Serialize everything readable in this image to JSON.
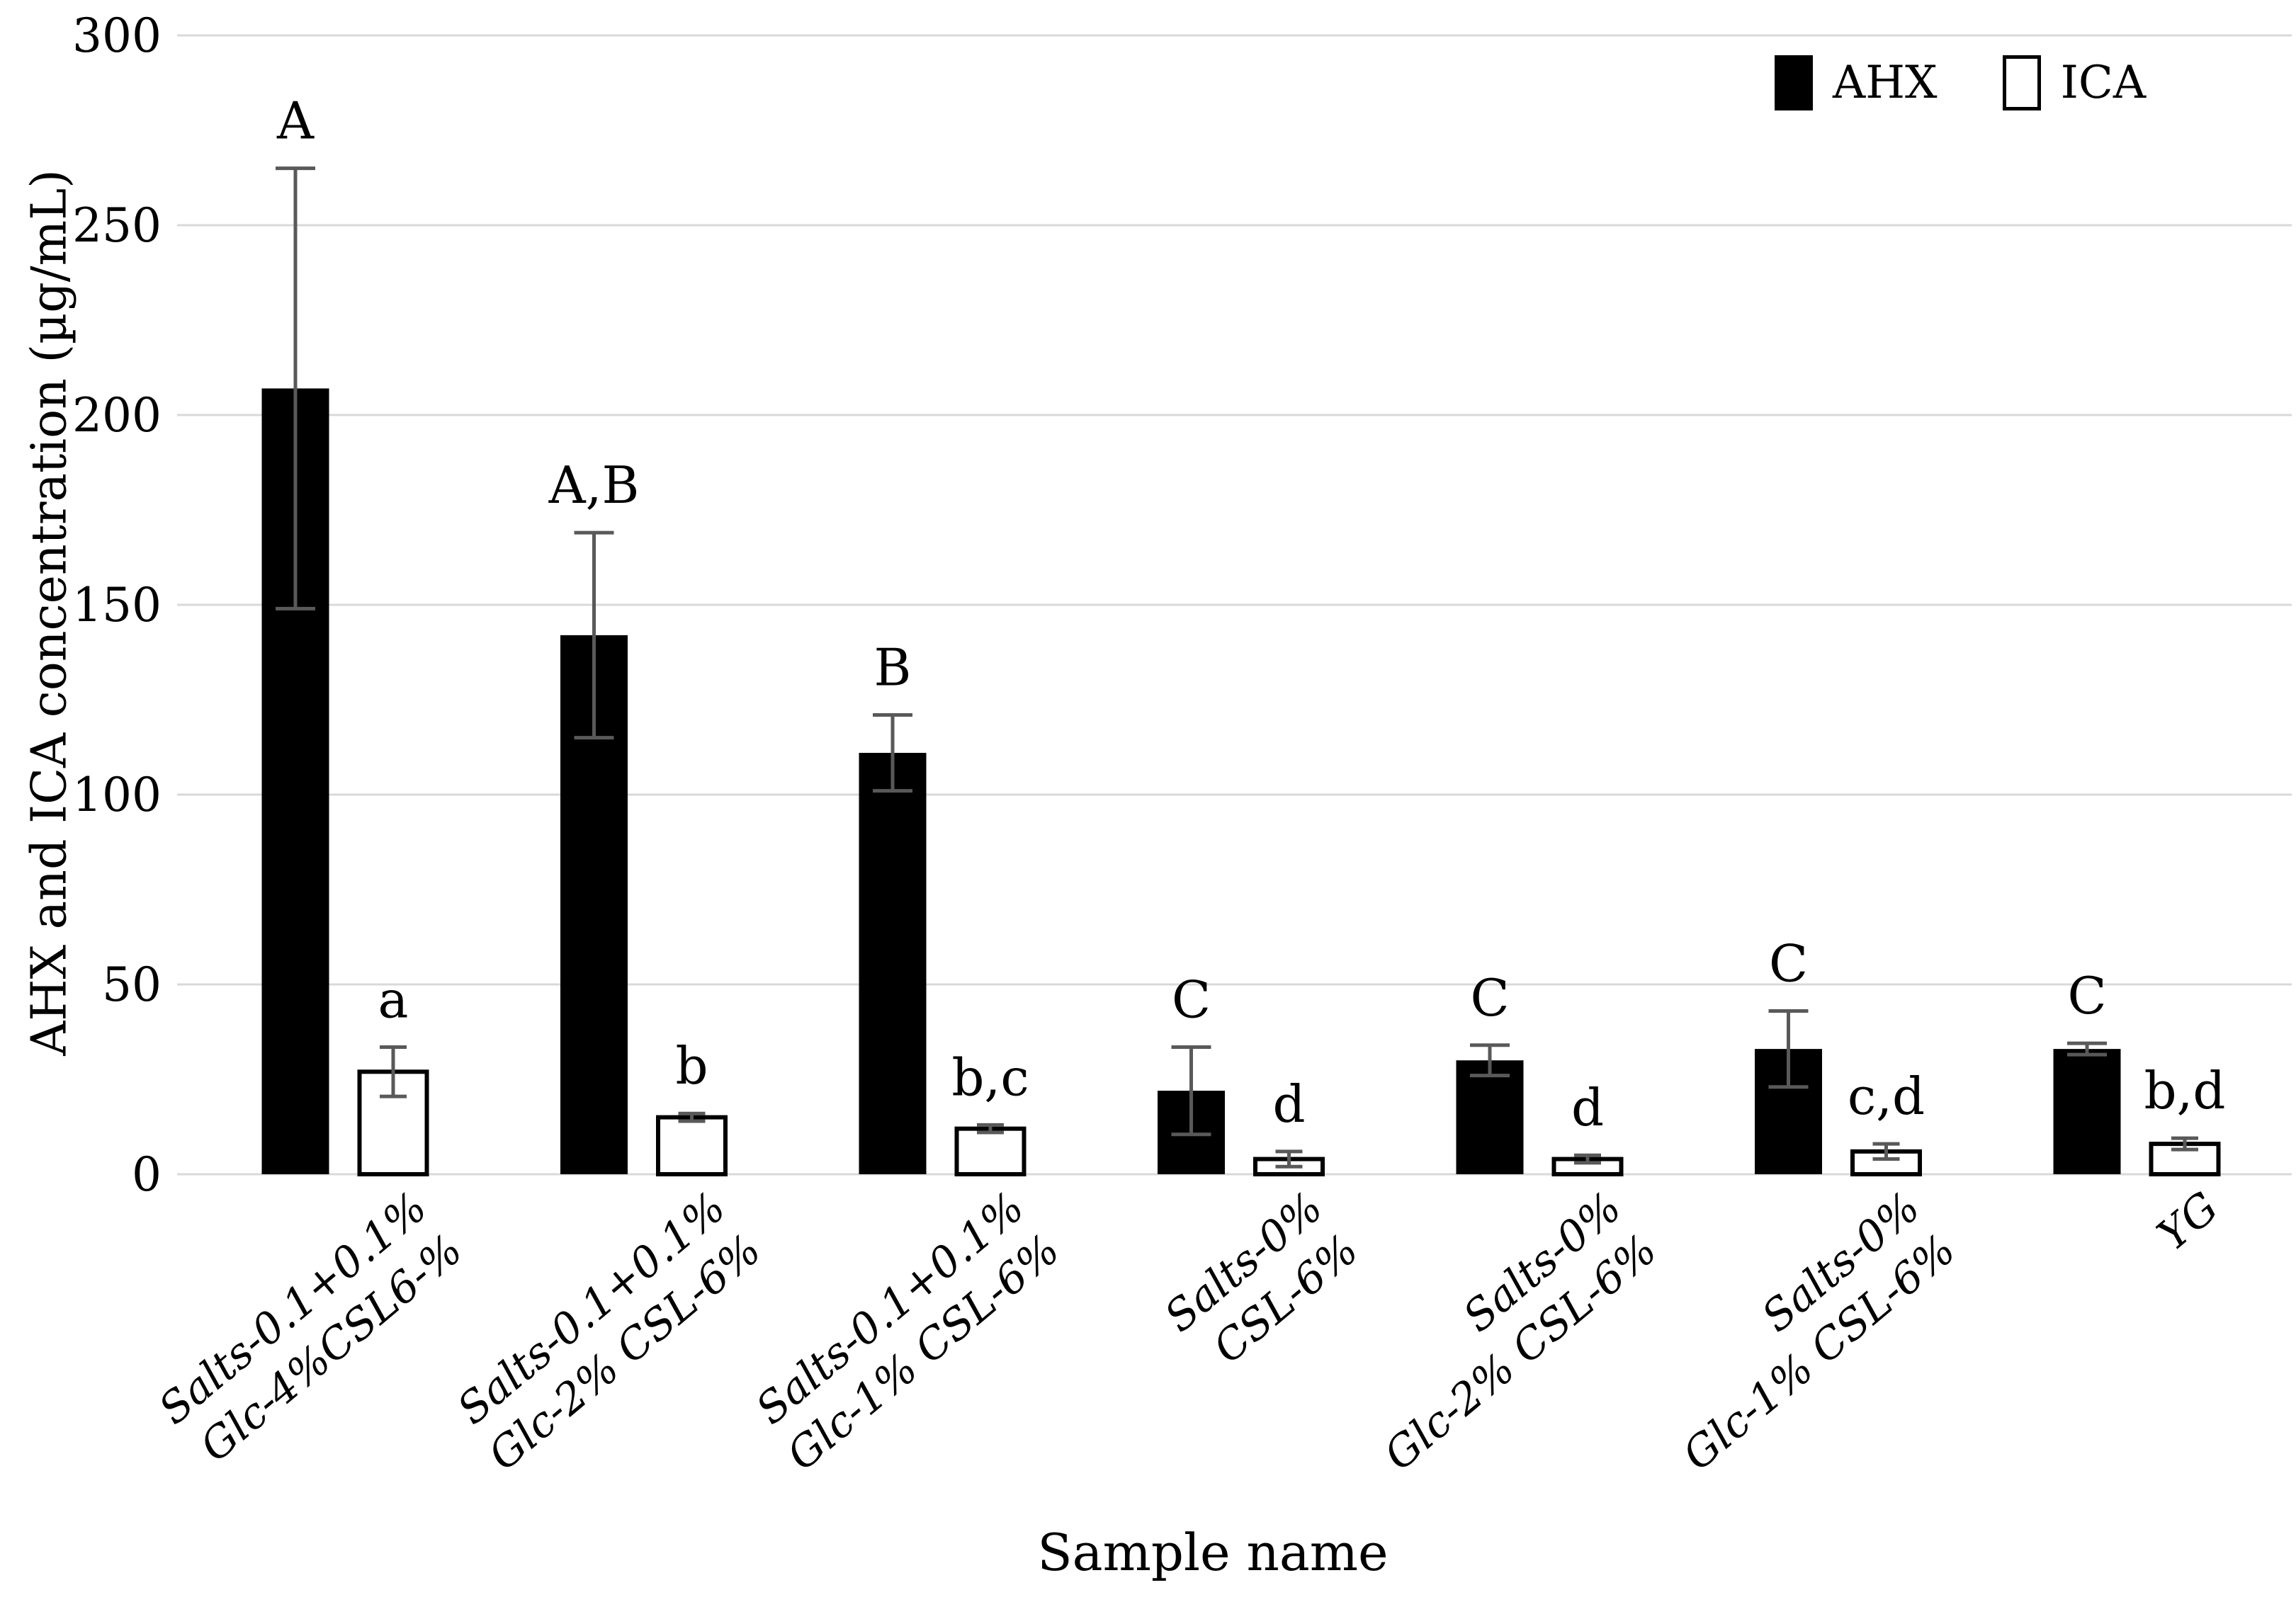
{
  "chart_data": {
    "type": "bar",
    "title": "",
    "xlabel": "Sample name",
    "ylabel": "AHX and ICA concentration (µg/mL)",
    "ylim": [
      0,
      300
    ],
    "yticks": [
      0,
      50,
      100,
      150,
      200,
      250,
      300
    ],
    "grid": true,
    "legend_position": "top-right",
    "categories": [
      [
        "Salts-0.1+0.1%",
        "Glc-4%CSL6-%"
      ],
      [
        "Salts-0.1+0.1%",
        "Glc-2% CSL-6%"
      ],
      [
        "Salts-0.1+0.1%",
        "Glc-1% CSL-6%"
      ],
      [
        "Salts-0%",
        "CSL-6%"
      ],
      [
        "Salts-0%",
        "Glc-2% CSL-6%"
      ],
      [
        "Salts-0%",
        "Glc-1% CSL-6%"
      ],
      [
        "YG"
      ]
    ],
    "series": [
      {
        "name": "AHX",
        "fill": "#000000",
        "values": [
          207,
          142,
          111,
          22,
          30,
          33,
          33
        ],
        "errors": [
          58,
          27,
          10,
          11.5,
          4,
          10,
          1.5
        ],
        "sig_letters": [
          "A",
          "A,B",
          "B",
          "C",
          "C",
          "C",
          "C"
        ]
      },
      {
        "name": "ICA",
        "fill": "#ffffff",
        "values": [
          27,
          15,
          12,
          4,
          4,
          6,
          8
        ],
        "errors": [
          6.5,
          1,
          1,
          2,
          1,
          2,
          1.5
        ],
        "sig_letters": [
          "a",
          "b",
          "b,c",
          "d",
          "d",
          "c,d",
          "b,d"
        ]
      }
    ],
    "colors": {
      "bar_black": "#000000",
      "bar_white": "#ffffff",
      "bar_border": "#000000",
      "gridline": "#d9d9d9",
      "error_bar": "#595959",
      "text": "#000000"
    },
    "legend": [
      {
        "label": "AHX"
      },
      {
        "label": "ICA"
      }
    ]
  }
}
